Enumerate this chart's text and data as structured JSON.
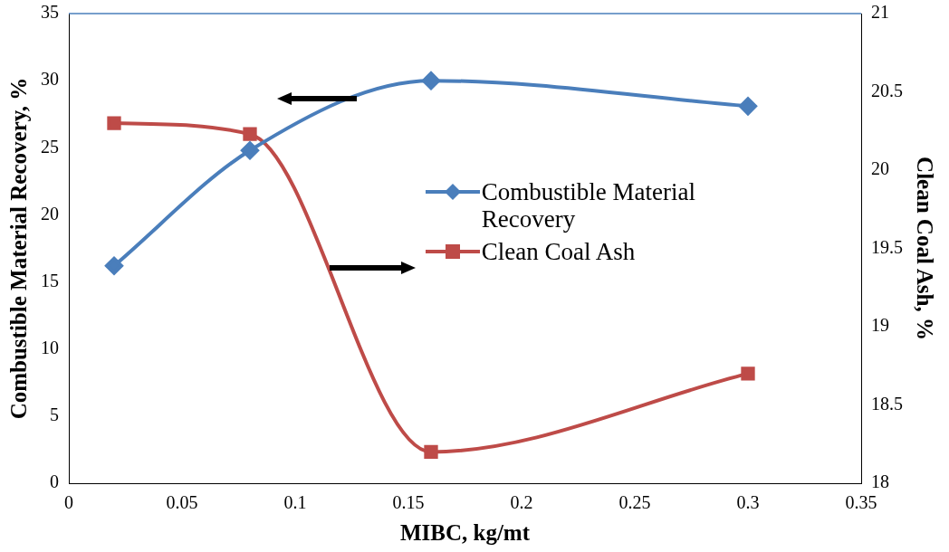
{
  "chart_data": {
    "type": "line",
    "xlabel": "MIBC, kg/mt",
    "ylabel": "Combustible Material Recovery, %",
    "y2label": "Clean Coal Ash, %",
    "x": [
      0.02,
      0.08,
      0.16,
      0.3
    ],
    "series": [
      {
        "name": "Combustible Material Recovery",
        "color": "#4a7ebb",
        "values": [
          16.2,
          24.8,
          30.0,
          28.1
        ],
        "marker": "diamond"
      },
      {
        "name": "Clean Coal Ash",
        "color": "#be4b48",
        "values": [
          20.3,
          20.23,
          18.2,
          18.7
        ],
        "axis": "y2",
        "marker": "square"
      }
    ],
    "xlim": [
      0,
      0.35
    ],
    "xticks": [
      0,
      0.05,
      0.1,
      0.15,
      0.2,
      0.25,
      0.3,
      0.35
    ],
    "ylim": [
      0,
      35
    ],
    "yticks": [
      0,
      5,
      10,
      15,
      20,
      25,
      30,
      35
    ],
    "y2lim": [
      18,
      21
    ],
    "y2ticks": [
      18,
      18.5,
      19,
      19.5,
      20,
      20.5,
      21
    ],
    "grid": false,
    "legend": "right",
    "line_style": "solid"
  }
}
